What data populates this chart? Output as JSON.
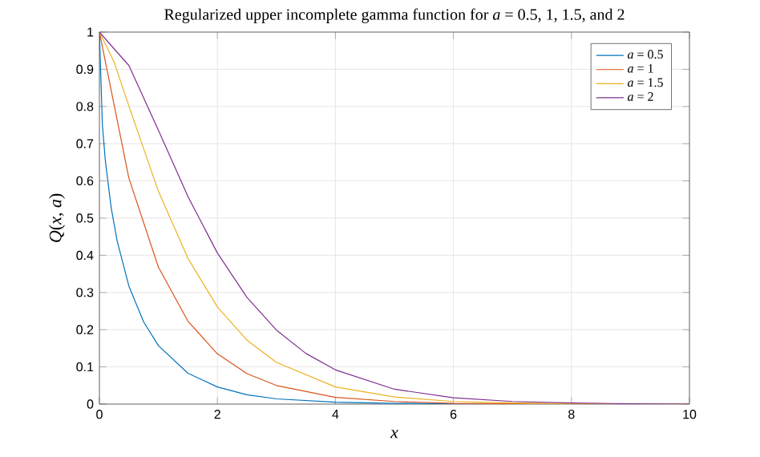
{
  "chart_data": {
    "type": "line",
    "title": "Regularized upper incomplete gamma function for *a* = 0.5, 1, 1.5,  and 2",
    "xlabel": "*x*",
    "ylabel": "*Q*(*x*, *a*)",
    "xlim": [
      0,
      10
    ],
    "ylim": [
      0,
      1
    ],
    "xticks": [
      0,
      2,
      4,
      6,
      8,
      10
    ],
    "yticks": [
      0,
      0.1,
      0.2,
      0.3,
      0.4,
      0.5,
      0.6,
      0.7,
      0.8,
      0.9,
      1
    ],
    "grid": true,
    "legend": "top right",
    "series": [
      {
        "name": "*a* = 0.5",
        "color": "#0072bd",
        "x": [
          0,
          0.05,
          0.1,
          0.2,
          0.3,
          0.5,
          0.75,
          1,
          1.5,
          2,
          2.5,
          3,
          4,
          5,
          6,
          8,
          10
        ],
        "values": [
          1,
          0.752,
          0.655,
          0.527,
          0.439,
          0.317,
          0.221,
          0.157,
          0.083,
          0.046,
          0.025,
          0.014,
          0.005,
          0.002,
          0.001,
          0,
          0
        ]
      },
      {
        "name": "*a* = 1",
        "color": "#d95319",
        "x": [
          0,
          0.5,
          1,
          1.5,
          2,
          2.5,
          3,
          4,
          5,
          6,
          8,
          10
        ],
        "values": [
          1,
          0.607,
          0.368,
          0.223,
          0.135,
          0.082,
          0.05,
          0.018,
          0.007,
          0.002,
          0,
          0
        ]
      },
      {
        "name": "*a* = 1.5",
        "color": "#edb120",
        "x": [
          0,
          0.25,
          0.5,
          1,
          1.5,
          2,
          2.5,
          3,
          4,
          5,
          6,
          7,
          8,
          10
        ],
        "values": [
          1,
          0.919,
          0.801,
          0.572,
          0.392,
          0.261,
          0.172,
          0.112,
          0.046,
          0.019,
          0.007,
          0.003,
          0.001,
          0
        ]
      },
      {
        "name": "*a* = 2",
        "color": "#7e2f8e",
        "x": [
          0,
          0.5,
          1,
          1.5,
          2,
          2.5,
          3,
          3.5,
          4,
          5,
          6,
          7,
          8,
          9,
          10
        ],
        "values": [
          1,
          0.91,
          0.736,
          0.558,
          0.406,
          0.287,
          0.199,
          0.136,
          0.092,
          0.04,
          0.017,
          0.007,
          0.003,
          0.001,
          0
        ]
      }
    ]
  }
}
